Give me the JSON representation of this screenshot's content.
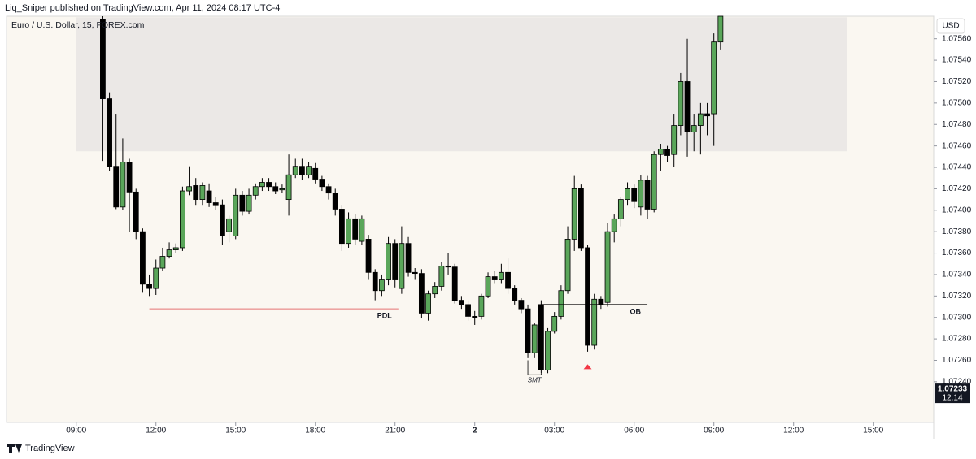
{
  "header": {
    "publisher": "Liq_Sniper published on TradingView.com, Apr 11, 2024 08:17 UTC-4"
  },
  "footer": {
    "brand": "TradingView"
  },
  "chart_data": {
    "type": "candlestick",
    "title": "Euro / U.S. Dollar, 15, FOREX.com",
    "currency": "USD",
    "up_color": "#5aa65a",
    "down_color": "#000000",
    "x": [
      4,
      5,
      6,
      7,
      8,
      9,
      10,
      11,
      12,
      13,
      14,
      15,
      16,
      17,
      18,
      19,
      20,
      21,
      22,
      23,
      24,
      25,
      26,
      27,
      28,
      29,
      30,
      31,
      32,
      33,
      34,
      35,
      36,
      37,
      38,
      39,
      40,
      41,
      42,
      43,
      44,
      45,
      46,
      47,
      48,
      49,
      50,
      51,
      52,
      53,
      54,
      55,
      56,
      57,
      58,
      59,
      60,
      61,
      62,
      63,
      64,
      65,
      66,
      67,
      68,
      69,
      70,
      71,
      72,
      73,
      74,
      75,
      76,
      77,
      78,
      79,
      80,
      81,
      82,
      83,
      84,
      85,
      86,
      87,
      88,
      89,
      90,
      91,
      92,
      93,
      94,
      95,
      96,
      97
    ],
    "open": [
      1.07578,
      1.07504,
      1.07441,
      1.07403,
      1.07445,
      1.07417,
      1.0738,
      1.07331,
      1.07327,
      1.07346,
      1.07357,
      1.07363,
      1.07365,
      1.07418,
      1.07423,
      1.0741,
      1.07418,
      1.07407,
      1.07405,
      1.0738,
      1.07376,
      1.07414,
      1.07399,
      1.07414,
      1.07422,
      1.07426,
      1.07422,
      1.07419,
      1.0741,
      1.07433,
      1.07441,
      1.07433,
      1.07439,
      1.07429,
      1.07422,
      1.07416,
      1.07401,
      1.07369,
      1.07392,
      1.07371,
      1.07373,
      1.07342,
      1.07325,
      1.07335,
      1.07369,
      1.07327,
      1.07369,
      1.07342,
      1.07341,
      1.07304,
      1.07322,
      1.07329,
      1.07348,
      1.07347,
      1.07316,
      1.07312,
      1.07301,
      1.07301,
      1.0732,
      1.07338,
      1.07335,
      1.07342,
      1.07327,
      1.07316,
      1.07308,
      1.07267,
      1.07312,
      1.07251,
      1.07287,
      1.07301,
      1.07325,
      1.07373,
      1.0742,
      1.07365,
      1.07274,
      1.07317,
      1.07314,
      1.0738,
      1.07392,
      1.0741,
      1.0742,
      1.07403,
      1.07428,
      1.07401,
      1.07452,
      1.07457,
      1.07452,
      1.07479,
      1.0752,
      1.07473,
      1.07479,
      1.0749,
      1.0749,
      1.07557
    ],
    "high": [
      1.07581,
      1.0751,
      1.0749,
      1.07467,
      1.07448,
      1.0742,
      1.07383,
      1.0734,
      1.07354,
      1.07365,
      1.0737,
      1.07369,
      1.07422,
      1.07441,
      1.0743,
      1.07426,
      1.07425,
      1.07412,
      1.0741,
      1.07395,
      1.0742,
      1.07418,
      1.0742,
      1.07425,
      1.0743,
      1.0743,
      1.07426,
      1.07424,
      1.07452,
      1.07448,
      1.07448,
      1.07445,
      1.07444,
      1.07432,
      1.07425,
      1.0742,
      1.07405,
      1.07398,
      1.07396,
      1.07395,
      1.07377,
      1.07345,
      1.0734,
      1.07375,
      1.07373,
      1.07385,
      1.07375,
      1.07346,
      1.07345,
      1.07325,
      1.07333,
      1.07352,
      1.0736,
      1.0735,
      1.0732,
      1.07316,
      1.07306,
      1.07322,
      1.07342,
      1.07343,
      1.0735,
      1.07355,
      1.0733,
      1.07318,
      1.07312,
      1.07295,
      1.07316,
      1.0729,
      1.07305,
      1.0733,
      1.07385,
      1.07432,
      1.07424,
      1.07368,
      1.07322,
      1.0732,
      1.07388,
      1.07396,
      1.07412,
      1.07426,
      1.07424,
      1.07433,
      1.07432,
      1.07455,
      1.07462,
      1.0746,
      1.0749,
      1.07528,
      1.0756,
      1.0749,
      1.075,
      1.075,
      1.07565,
      1.07581
    ],
    "low": [
      1.07446,
      1.07437,
      1.07401,
      1.074,
      1.0738,
      1.07373,
      1.07323,
      1.0732,
      1.07321,
      1.07343,
      1.07355,
      1.0736,
      1.07362,
      1.07414,
      1.07405,
      1.07405,
      1.07403,
      1.074,
      1.07368,
      1.0737,
      1.07373,
      1.07395,
      1.07396,
      1.0741,
      1.07418,
      1.07418,
      1.07415,
      1.07416,
      1.07395,
      1.0743,
      1.07428,
      1.0743,
      1.07425,
      1.07418,
      1.0741,
      1.07395,
      1.07362,
      1.07365,
      1.07368,
      1.07368,
      1.07335,
      1.07316,
      1.0732,
      1.0733,
      1.07328,
      1.07322,
      1.07338,
      1.07335,
      1.07299,
      1.07297,
      1.07318,
      1.07325,
      1.0734,
      1.07313,
      1.07308,
      1.07297,
      1.07293,
      1.07298,
      1.07318,
      1.07332,
      1.07332,
      1.07322,
      1.07312,
      1.07304,
      1.07262,
      1.07262,
      1.07248,
      1.07248,
      1.07285,
      1.07298,
      1.07322,
      1.07362,
      1.07362,
      1.07268,
      1.0727,
      1.07308,
      1.0731,
      1.0737,
      1.07385,
      1.07405,
      1.07402,
      1.07395,
      1.07392,
      1.07398,
      1.07437,
      1.07445,
      1.0744,
      1.0747,
      1.0745,
      1.07455,
      1.07452,
      1.0747,
      1.0746,
      1.0755
    ],
    "close": [
      1.07504,
      1.07441,
      1.07403,
      1.07445,
      1.07417,
      1.0738,
      1.07331,
      1.07327,
      1.07346,
      1.07357,
      1.07363,
      1.07365,
      1.07418,
      1.07422,
      1.0741,
      1.07423,
      1.07407,
      1.07405,
      1.07376,
      1.07392,
      1.07414,
      1.07399,
      1.07414,
      1.07422,
      1.07426,
      1.07422,
      1.07418,
      1.0742,
      1.07433,
      1.07441,
      1.07433,
      1.07441,
      1.07429,
      1.07422,
      1.07416,
      1.07401,
      1.07369,
      1.07392,
      1.07373,
      1.07392,
      1.07342,
      1.07325,
      1.07335,
      1.07369,
      1.07335,
      1.07369,
      1.07342,
      1.07341,
      1.07304,
      1.07322,
      1.07329,
      1.07348,
      1.07347,
      1.07316,
      1.07312,
      1.07301,
      1.073,
      1.0732,
      1.07338,
      1.07335,
      1.07342,
      1.07327,
      1.07316,
      1.07308,
      1.07267,
      1.07293,
      1.07251,
      1.07287,
      1.07301,
      1.07325,
      1.07373,
      1.0742,
      1.07365,
      1.07274,
      1.07317,
      1.07312,
      1.0738,
      1.07392,
      1.0741,
      1.0742,
      1.07408,
      1.07428,
      1.07401,
      1.07452,
      1.07457,
      1.07451,
      1.07479,
      1.0752,
      1.07473,
      1.07479,
      1.0749,
      1.07488,
      1.07557,
      1.07581
    ],
    "xlim": [
      -10.5,
      129.1
    ],
    "xticks": [
      {
        "value": 0,
        "label": "09:00"
      },
      {
        "value": 12,
        "label": "12:00"
      },
      {
        "value": 24,
        "label": "15:00"
      },
      {
        "value": 36,
        "label": "18:00"
      },
      {
        "value": 48,
        "label": "21:00"
      },
      {
        "value": 60,
        "label": "2"
      },
      {
        "value": 72,
        "label": "03:00"
      },
      {
        "value": 84,
        "label": "06:00"
      },
      {
        "value": 96,
        "label": "09:00"
      },
      {
        "value": 108,
        "label": "12:00"
      },
      {
        "value": 120,
        "label": "15:00"
      }
    ],
    "ylim": [
      1.07202,
      1.07581
    ],
    "yticks": [
      {
        "value": 1.0724,
        "label": "1.07240"
      },
      {
        "value": 1.0726,
        "label": "1.07260"
      },
      {
        "value": 1.0728,
        "label": "1.07280"
      },
      {
        "value": 1.073,
        "label": "1.07300"
      },
      {
        "value": 1.0732,
        "label": "1.07320"
      },
      {
        "value": 1.0734,
        "label": "1.07340"
      },
      {
        "value": 1.0736,
        "label": "1.07360"
      },
      {
        "value": 1.0738,
        "label": "1.07380"
      },
      {
        "value": 1.074,
        "label": "1.07400"
      },
      {
        "value": 1.0742,
        "label": "1.07420"
      },
      {
        "value": 1.0744,
        "label": "1.07440"
      },
      {
        "value": 1.0746,
        "label": "1.07460"
      },
      {
        "value": 1.0748,
        "label": "1.07480"
      },
      {
        "value": 1.075,
        "label": "1.07500"
      },
      {
        "value": 1.0752,
        "label": "1.07520"
      },
      {
        "value": 1.0754,
        "label": "1.07540"
      },
      {
        "value": 1.0756,
        "label": "1.07560"
      }
    ],
    "last_price": 1.07233,
    "countdown": "12:14",
    "zones": [
      {
        "x": [
          0,
          116
        ],
        "y": [
          1.07455,
          1.0758
        ],
        "color": "#ebe8e6"
      }
    ],
    "lines": [
      {
        "label": "PDL",
        "color": "#e57373",
        "x": [
          11,
          48.5
        ],
        "y": 1.07308
      },
      {
        "label": "OB",
        "color": "#000000",
        "x": [
          70,
          86
        ],
        "y": 1.07312
      }
    ],
    "divergence": {
      "label": "SMT",
      "x": [
        68,
        70
      ],
      "y": [
        1.0726,
        1.07248
      ]
    },
    "markers": [
      {
        "x": 77,
        "y": 1.07254,
        "color": "#f23645"
      }
    ]
  }
}
